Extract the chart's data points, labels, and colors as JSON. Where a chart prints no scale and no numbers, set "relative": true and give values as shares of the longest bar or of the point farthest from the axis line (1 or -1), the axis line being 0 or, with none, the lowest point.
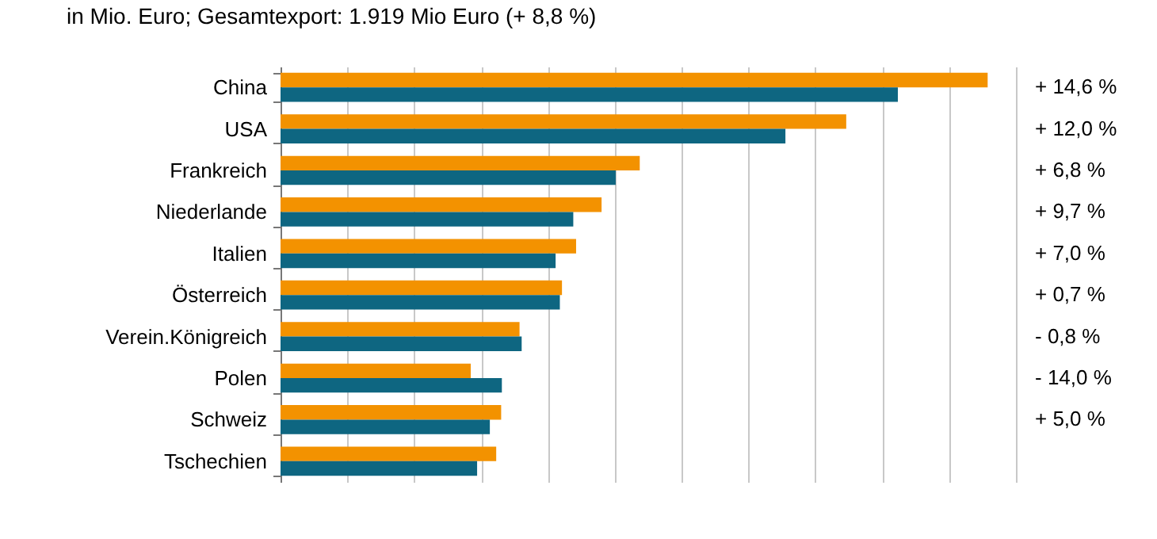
{
  "chart_data": {
    "type": "bar",
    "orientation": "horizontal",
    "relative": true,
    "grid": "x",
    "title": "in Mio. Euro; Gesamtexport: 1.919 Mio Euro (+ 8,8 %)",
    "categories": [
      "China",
      "USA",
      "Frankreich",
      "Niederlande",
      "Italien",
      "Österreich",
      "Verein.Königreich",
      "Polen",
      "Schweiz",
      "Tschechien"
    ],
    "series": [
      {
        "color": "#f39200",
        "values": [
          1,
          0.8,
          0.508,
          0.454,
          0.418,
          0.398,
          0.338,
          0.269,
          0.312,
          0.305
        ]
      },
      {
        "color": "#0e6681",
        "values": [
          0.873,
          0.714,
          0.474,
          0.414,
          0.389,
          0.395,
          0.341,
          0.313,
          0.296,
          0.278
        ]
      }
    ],
    "annotations": [
      "+ 14,6 %",
      "+ 12,0 %",
      "+ 6,8 %",
      "+  9,7 %",
      "+ 7,0 %",
      "+ 0,7 %",
      "- 0,8 %",
      "- 14,0 %",
      "+ 5,0 %"
    ]
  }
}
